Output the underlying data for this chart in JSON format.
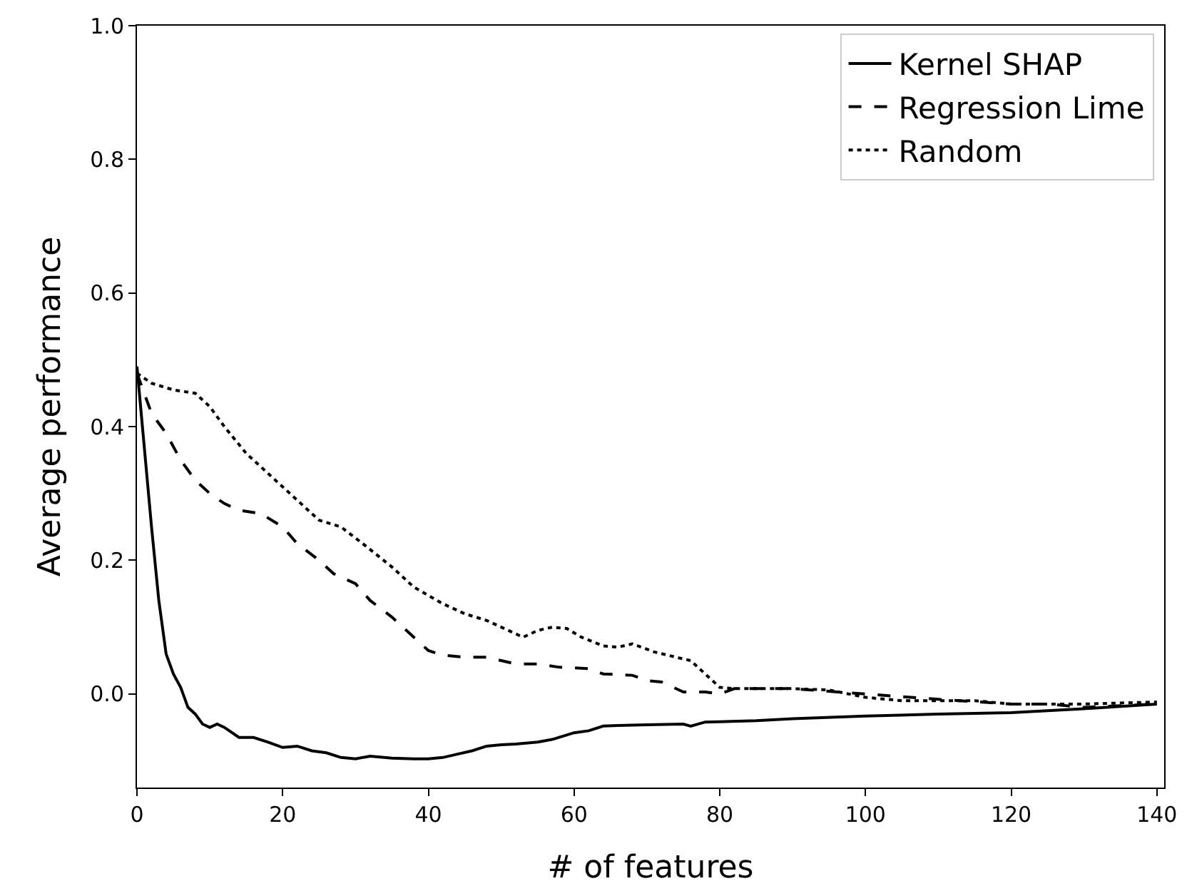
{
  "chart_data": {
    "type": "line",
    "xlabel": "# of features",
    "ylabel": "Average performance",
    "xlim": [
      0,
      141
    ],
    "ylim": [
      -0.14,
      1.0
    ],
    "xticks": [
      0,
      20,
      40,
      60,
      80,
      100,
      120,
      140
    ],
    "yticks": [
      {
        "value": 0,
        "label": "0.0"
      },
      0.2,
      0.4,
      0.6,
      0.8,
      {
        "value": 1,
        "label": "1.0"
      }
    ],
    "grid": false,
    "legend": "top right",
    "marker": "none",
    "series": [
      {
        "name": "Kernel SHAP",
        "color": "#000000",
        "line_style": "solid",
        "x": [
          0,
          2,
          3,
          4,
          5,
          6,
          7,
          8,
          9,
          10,
          11,
          12,
          14,
          16,
          18,
          20,
          22,
          24,
          26,
          28,
          30,
          32,
          35,
          38,
          40,
          42,
          44,
          46,
          48,
          50,
          52,
          55,
          57,
          60,
          62,
          64,
          66,
          70,
          75,
          76,
          78,
          85,
          90,
          100,
          110,
          120,
          130,
          140
        ],
        "values": [
          0.49,
          0.25,
          0.14,
          0.06,
          0.03,
          0.01,
          -0.02,
          -0.03,
          -0.045,
          -0.05,
          -0.045,
          -0.05,
          -0.065,
          -0.065,
          -0.072,
          -0.08,
          -0.078,
          -0.085,
          -0.088,
          -0.095,
          -0.097,
          -0.093,
          -0.096,
          -0.097,
          -0.097,
          -0.095,
          -0.09,
          -0.085,
          -0.078,
          -0.076,
          -0.075,
          -0.072,
          -0.068,
          -0.058,
          -0.055,
          -0.048,
          -0.047,
          -0.046,
          -0.045,
          -0.048,
          -0.042,
          -0.04,
          -0.037,
          -0.033,
          -0.03,
          -0.028,
          -0.022,
          -0.015
        ]
      },
      {
        "name": "Regression Lime",
        "color": "#000000",
        "line_style": "dashed",
        "x": [
          0,
          2,
          4,
          6,
          8,
          10,
          12,
          14,
          17,
          20,
          22,
          25,
          27,
          30,
          32,
          35,
          38,
          40,
          42,
          45,
          48,
          50,
          52,
          55,
          58,
          62,
          64,
          68,
          70,
          72,
          75,
          78,
          80,
          82,
          90,
          100,
          110,
          120,
          125,
          130,
          140
        ],
        "values": [
          0.48,
          0.42,
          0.39,
          0.35,
          0.32,
          0.3,
          0.285,
          0.275,
          0.27,
          0.25,
          0.225,
          0.2,
          0.18,
          0.165,
          0.14,
          0.115,
          0.085,
          0.065,
          0.058,
          0.055,
          0.055,
          0.05,
          0.045,
          0.045,
          0.04,
          0.038,
          0.03,
          0.028,
          0.02,
          0.018,
          0.003,
          0.003,
          0.0,
          0.008,
          0.008,
          0.0,
          -0.008,
          -0.015,
          -0.015,
          -0.02,
          -0.015
        ]
      },
      {
        "name": "Random",
        "color": "#000000",
        "line_style": "dotted",
        "x": [
          0,
          2,
          5,
          8,
          10,
          12,
          15,
          18,
          22,
          25,
          28,
          31,
          35,
          38,
          42,
          45,
          48,
          50,
          53,
          55,
          57,
          59,
          61,
          64,
          66,
          68,
          71,
          74,
          76,
          78,
          80,
          82,
          90,
          95,
          100,
          105,
          110,
          115,
          120,
          130,
          140
        ],
        "values": [
          0.48,
          0.465,
          0.455,
          0.45,
          0.43,
          0.4,
          0.36,
          0.33,
          0.29,
          0.26,
          0.25,
          0.225,
          0.19,
          0.16,
          0.135,
          0.12,
          0.11,
          0.1,
          0.085,
          0.095,
          0.1,
          0.098,
          0.085,
          0.072,
          0.07,
          0.075,
          0.063,
          0.055,
          0.05,
          0.03,
          0.01,
          0.008,
          0.008,
          0.006,
          -0.005,
          -0.01,
          -0.01,
          -0.01,
          -0.015,
          -0.015,
          -0.012
        ]
      }
    ]
  }
}
